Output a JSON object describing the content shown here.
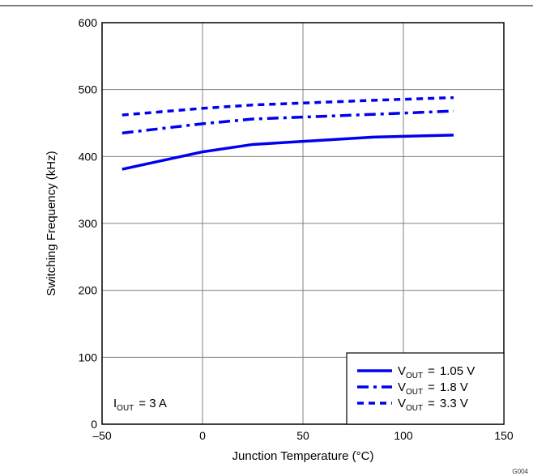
{
  "chart_data": {
    "type": "line",
    "title": "",
    "xlabel": "Junction Temperature (°C)",
    "ylabel": "Switching Frequency (kHz)",
    "xlim": [
      -50,
      150
    ],
    "ylim": [
      0,
      600
    ],
    "xticks": [
      -50,
      0,
      50,
      100,
      150
    ],
    "yticks": [
      0,
      100,
      200,
      300,
      400,
      500,
      600
    ],
    "xtick_labels": [
      "–50",
      "0",
      "50",
      "100",
      "150"
    ],
    "ytick_labels": [
      "0",
      "100",
      "200",
      "300",
      "400",
      "500",
      "600"
    ],
    "grid": true,
    "legend_position": "bottom-right",
    "series": [
      {
        "name": "1.05 V",
        "dash": "solid",
        "x": [
          -40,
          0,
          25,
          85,
          125
        ],
        "y": [
          381,
          407,
          418,
          429,
          432
        ]
      },
      {
        "name": "1.8 V",
        "dash": "dash-dot",
        "x": [
          -40,
          0,
          25,
          85,
          125
        ],
        "y": [
          435,
          449,
          456,
          463,
          468
        ]
      },
      {
        "name": "3.3 V",
        "dash": "short-dash",
        "x": [
          -40,
          0,
          25,
          85,
          125
        ],
        "y": [
          462,
          472,
          477,
          484,
          488
        ]
      }
    ],
    "annotation": "= 3 A"
  },
  "legend": {
    "prefix": "V",
    "subscript": "OUT",
    "equals": "="
  },
  "annotation_var": {
    "prefix": "I",
    "subscript": "OUT"
  },
  "figure_id": "G004",
  "colors": {
    "line": "#0000ee",
    "grid": "#808080",
    "frame": "#000000"
  }
}
